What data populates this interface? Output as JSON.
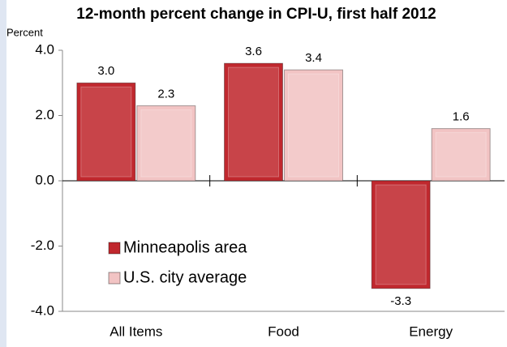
{
  "chart_data": {
    "type": "bar",
    "title": "12-month percent change in CPI-U, first half 2012",
    "y_label": "Percent",
    "categories": [
      "All Items",
      "Food",
      "Energy"
    ],
    "series": [
      {
        "name": "Minneapolis area",
        "color": "#c0282e",
        "values": [
          3.0,
          3.6,
          -3.3
        ],
        "value_labels": [
          "3.0",
          "3.6",
          "-3.3"
        ]
      },
      {
        "name": "U.S. city average",
        "color": "#f2c4c4",
        "values": [
          2.3,
          3.4,
          1.6
        ],
        "value_labels": [
          "2.3",
          "3.4",
          "1.6"
        ]
      }
    ],
    "ylim": [
      -4,
      4
    ],
    "yticks": [
      {
        "value": 4,
        "label": "4.0"
      },
      {
        "value": 2,
        "label": "2.0"
      },
      {
        "value": 0,
        "label": "0.0"
      },
      {
        "value": -2,
        "label": "-2.0"
      },
      {
        "value": -4,
        "label": "-4.0"
      }
    ],
    "legend": "lower left"
  }
}
